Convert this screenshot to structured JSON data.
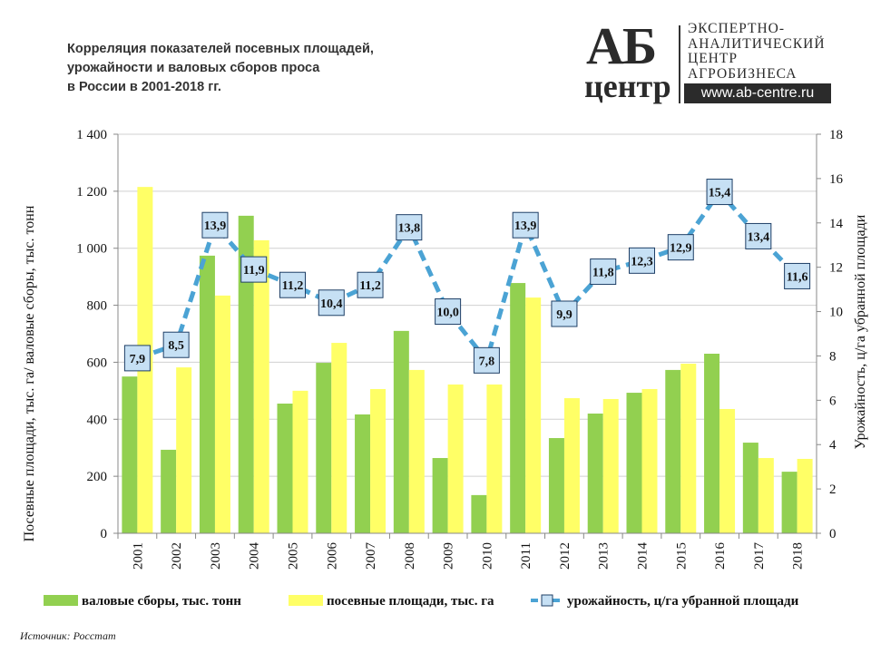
{
  "title_lines": [
    "Корреляция показателей посевных площадей,",
    "урожайности и валовых сборов проса",
    "в России в 2001-2018 гг."
  ],
  "logo": {
    "big": "АБ",
    "small": "центр",
    "lines": [
      "ЭКСПЕРТНО-",
      "АНАЛИТИЧЕСКИЙ",
      "ЦЕНТР",
      "АГРОБИЗНЕСА"
    ],
    "url": "www.ab-centre.ru"
  },
  "source": "Источник:  Росстат",
  "colors": {
    "harvest": "#92d050",
    "area": "#ffff66",
    "yield_line": "#4ba3d4",
    "label_fill": "#c6e0f4",
    "label_border": "#1f3f66"
  },
  "chart_data": {
    "type": "bar+line",
    "categories": [
      "2001",
      "2002",
      "2003",
      "2004",
      "2005",
      "2006",
      "2007",
      "2008",
      "2009",
      "2010",
      "2011",
      "2012",
      "2013",
      "2014",
      "2015",
      "2016",
      "2017",
      "2018"
    ],
    "series": [
      {
        "name": "валовые сборы, тыс. тонн",
        "type": "bar",
        "axis": "left",
        "values": [
          550,
          293,
          974,
          1114,
          455,
          598,
          417,
          710,
          264,
          134,
          878,
          334,
          420,
          493,
          573,
          630,
          318,
          216
        ]
      },
      {
        "name": "посевные площади, тыс. га",
        "type": "bar",
        "axis": "left",
        "values": [
          1215,
          582,
          834,
          1028,
          500,
          668,
          506,
          573,
          522,
          522,
          827,
          474,
          471,
          506,
          595,
          436,
          264,
          261
        ]
      },
      {
        "name": "урожайность, ц/га убранной площади",
        "type": "line",
        "axis": "right",
        "values": [
          7.9,
          8.5,
          13.9,
          11.9,
          11.2,
          10.4,
          11.2,
          13.8,
          10.0,
          7.8,
          13.9,
          9.9,
          11.8,
          12.3,
          12.9,
          15.4,
          13.4,
          11.6
        ],
        "labels": [
          "7,9",
          "8,5",
          "13,9",
          "11,9",
          "11,2",
          "10,4",
          "11,2",
          "13,8",
          "10,0",
          "7,8",
          "13,9",
          "9,9",
          "11,8",
          "12,3",
          "12,9",
          "15,4",
          "13,4",
          "11,6"
        ]
      }
    ],
    "ylabel": "Посевные площади, тыс. га/ валовые сборы, тыс. тонн",
    "ylabel_right": "Урожайность, ц/га убранной площади",
    "ylim": [
      0,
      1400
    ],
    "ylim_right": [
      0,
      18
    ],
    "yticks": [
      "0",
      "200",
      "400",
      "600",
      "800",
      "1 000",
      "1 200",
      "1 400"
    ],
    "yticks_right": [
      "0",
      "2",
      "4",
      "6",
      "8",
      "10",
      "12",
      "14",
      "16",
      "18"
    ],
    "grid": true,
    "legend_position": "bottom"
  }
}
